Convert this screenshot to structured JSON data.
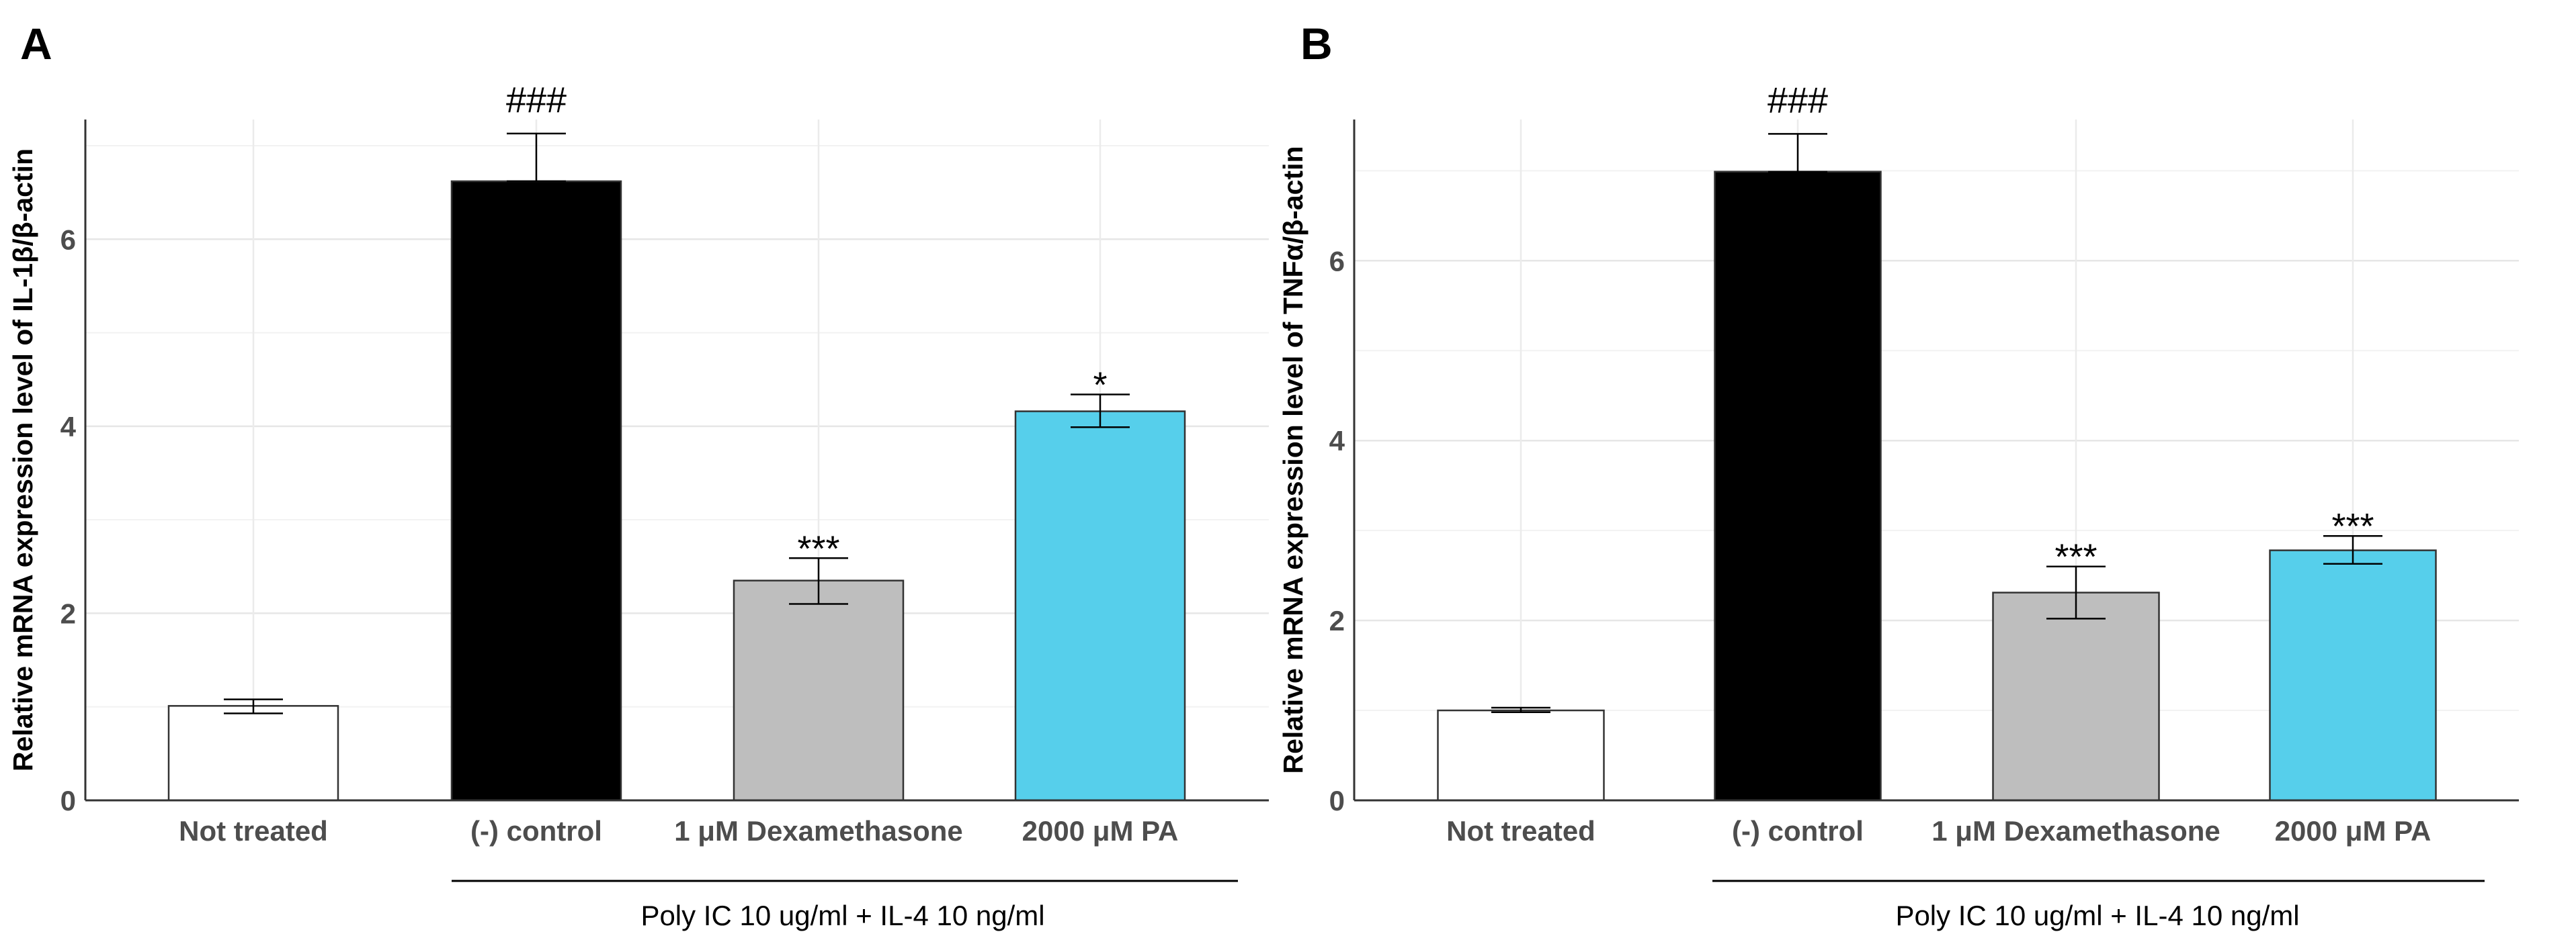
{
  "chart_data": [
    {
      "type": "bar",
      "panel": "A",
      "title": "",
      "xlabel": "",
      "ylabel": "Relative mRNA expression level of IL-1β/β-actin",
      "categories": [
        "Not treated",
        "(-) control",
        "1 μM Dexamethasone",
        "2000 μM PA"
      ],
      "values": [
        1.01,
        6.62,
        2.35,
        4.16
      ],
      "error_upper": [
        1.08,
        7.13,
        2.59,
        4.34
      ],
      "error_lower": [
        0.93,
        6.62,
        2.1,
        3.99
      ],
      "annotations": [
        "",
        "###",
        "***",
        "*"
      ],
      "colors": [
        "#ffffff",
        "#000000",
        "#bebebe",
        "#56cfeb"
      ],
      "yticks": [
        "0",
        "2",
        "4",
        "6"
      ],
      "ylim": [
        0,
        7.28
      ],
      "grid": true,
      "group_label": "Poly IC 10 ug/ml + IL-4 10 ng/ml"
    },
    {
      "type": "bar",
      "panel": "B",
      "title": "",
      "xlabel": "",
      "ylabel": "Relative mRNA expression level of TNFα/β-actin",
      "categories": [
        "Not treated",
        "(-) control",
        "1 μM Dexamethasone",
        "2000 μM PA"
      ],
      "values": [
        1.0,
        6.99,
        2.31,
        2.78
      ],
      "error_upper": [
        1.03,
        7.41,
        2.6,
        2.94
      ],
      "error_lower": [
        0.98,
        6.99,
        2.02,
        2.63
      ],
      "annotations": [
        "",
        "###",
        "***",
        "***"
      ],
      "colors": [
        "#ffffff",
        "#000000",
        "#bebebe",
        "#56cfeb"
      ],
      "yticks": [
        "0",
        "2",
        "4",
        "6"
      ],
      "ylim": [
        0,
        7.57
      ],
      "grid": true,
      "group_label": "Poly IC 10 ug/ml + IL-4 10 ng/ml"
    }
  ]
}
